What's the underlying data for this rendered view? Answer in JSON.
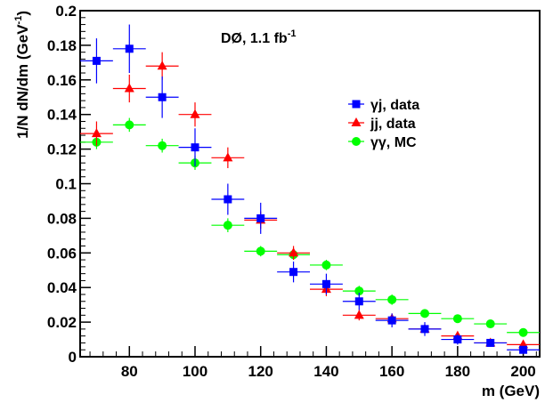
{
  "chart_data": {
    "type": "scatter",
    "annotation": {
      "text": "DØ, 1.1 fb",
      "superscript": "-1"
    },
    "xlabel": "m (GeV)",
    "ylabel": {
      "text": "1/N dN/dm (GeV",
      "superscript": "-1",
      "suffix": ")"
    },
    "xlim": [
      65,
      205
    ],
    "ylim": [
      0,
      0.2
    ],
    "xticks": [
      80,
      100,
      120,
      140,
      160,
      180,
      200
    ],
    "yticks": [
      0,
      0.02,
      0.04,
      0.06,
      0.08,
      0.1,
      0.12,
      0.14,
      0.16,
      0.18,
      0.2
    ],
    "ytick_labels": [
      "0",
      "0.02",
      "0.04",
      "0.06",
      "0.08",
      "0.1",
      "0.12",
      "0.14",
      "0.16",
      "0.18",
      "0.2"
    ],
    "legend_position": "upper-right",
    "series": [
      {
        "name": "γj, data",
        "color": "#0000ff",
        "marker": "square",
        "points": [
          {
            "x": 70,
            "xerr": 5,
            "y": 0.171,
            "yerr": 0.013
          },
          {
            "x": 80,
            "xerr": 5,
            "y": 0.178,
            "yerr": 0.014
          },
          {
            "x": 90,
            "xerr": 5,
            "y": 0.15,
            "yerr": 0.012
          },
          {
            "x": 100,
            "xerr": 5,
            "y": 0.121,
            "yerr": 0.011
          },
          {
            "x": 110,
            "xerr": 5,
            "y": 0.091,
            "yerr": 0.009
          },
          {
            "x": 120,
            "xerr": 5,
            "y": 0.08,
            "yerr": 0.009
          },
          {
            "x": 130,
            "xerr": 5,
            "y": 0.049,
            "yerr": 0.006
          },
          {
            "x": 140,
            "xerr": 5,
            "y": 0.042,
            "yerr": 0.006
          },
          {
            "x": 150,
            "xerr": 5,
            "y": 0.032,
            "yerr": 0.005
          },
          {
            "x": 160,
            "xerr": 5,
            "y": 0.021,
            "yerr": 0.004
          },
          {
            "x": 170,
            "xerr": 5,
            "y": 0.016,
            "yerr": 0.004
          },
          {
            "x": 180,
            "xerr": 5,
            "y": 0.01,
            "yerr": 0.003
          },
          {
            "x": 190,
            "xerr": 5,
            "y": 0.008,
            "yerr": 0.002
          },
          {
            "x": 200,
            "xerr": 5,
            "y": 0.004,
            "yerr": 0.002
          }
        ]
      },
      {
        "name": "jj, data",
        "color": "#ff0000",
        "marker": "triangle",
        "points": [
          {
            "x": 70,
            "xerr": 5,
            "y": 0.129,
            "yerr": 0.007
          },
          {
            "x": 80,
            "xerr": 5,
            "y": 0.155,
            "yerr": 0.008
          },
          {
            "x": 90,
            "xerr": 5,
            "y": 0.168,
            "yerr": 0.008
          },
          {
            "x": 100,
            "xerr": 5,
            "y": 0.14,
            "yerr": 0.007
          },
          {
            "x": 110,
            "xerr": 5,
            "y": 0.115,
            "yerr": 0.006
          },
          {
            "x": 120,
            "xerr": 5,
            "y": 0.079,
            "yerr": 0.005
          },
          {
            "x": 130,
            "xerr": 5,
            "y": 0.06,
            "yerr": 0.004
          },
          {
            "x": 140,
            "xerr": 5,
            "y": 0.039,
            "yerr": 0.004
          },
          {
            "x": 150,
            "xerr": 5,
            "y": 0.024,
            "yerr": 0.003
          },
          {
            "x": 160,
            "xerr": 5,
            "y": 0.022,
            "yerr": 0.003
          },
          {
            "x": 170,
            "xerr": 5,
            "y": 0.016,
            "yerr": 0.002
          },
          {
            "x": 180,
            "xerr": 5,
            "y": 0.012,
            "yerr": 0.002
          },
          {
            "x": 190,
            "xerr": 5,
            "y": 0.008,
            "yerr": 0.002
          },
          {
            "x": 200,
            "xerr": 5,
            "y": 0.007,
            "yerr": 0.002
          }
        ]
      },
      {
        "name": "γγ, MC",
        "color": "#00ff00",
        "marker": "circle",
        "points": [
          {
            "x": 70,
            "xerr": 5,
            "y": 0.124,
            "yerr": 0.004
          },
          {
            "x": 80,
            "xerr": 5,
            "y": 0.134,
            "yerr": 0.004
          },
          {
            "x": 90,
            "xerr": 5,
            "y": 0.122,
            "yerr": 0.004
          },
          {
            "x": 100,
            "xerr": 5,
            "y": 0.112,
            "yerr": 0.004
          },
          {
            "x": 110,
            "xerr": 5,
            "y": 0.076,
            "yerr": 0.004
          },
          {
            "x": 120,
            "xerr": 5,
            "y": 0.061,
            "yerr": 0.003
          },
          {
            "x": 130,
            "xerr": 5,
            "y": 0.059,
            "yerr": 0.003
          },
          {
            "x": 140,
            "xerr": 5,
            "y": 0.053,
            "yerr": 0.003
          },
          {
            "x": 150,
            "xerr": 5,
            "y": 0.038,
            "yerr": 0.003
          },
          {
            "x": 160,
            "xerr": 5,
            "y": 0.033,
            "yerr": 0.003
          },
          {
            "x": 170,
            "xerr": 5,
            "y": 0.025,
            "yerr": 0.002
          },
          {
            "x": 180,
            "xerr": 5,
            "y": 0.022,
            "yerr": 0.002
          },
          {
            "x": 190,
            "xerr": 5,
            "y": 0.019,
            "yerr": 0.002
          },
          {
            "x": 200,
            "xerr": 5,
            "y": 0.014,
            "yerr": 0.002
          }
        ]
      }
    ]
  }
}
